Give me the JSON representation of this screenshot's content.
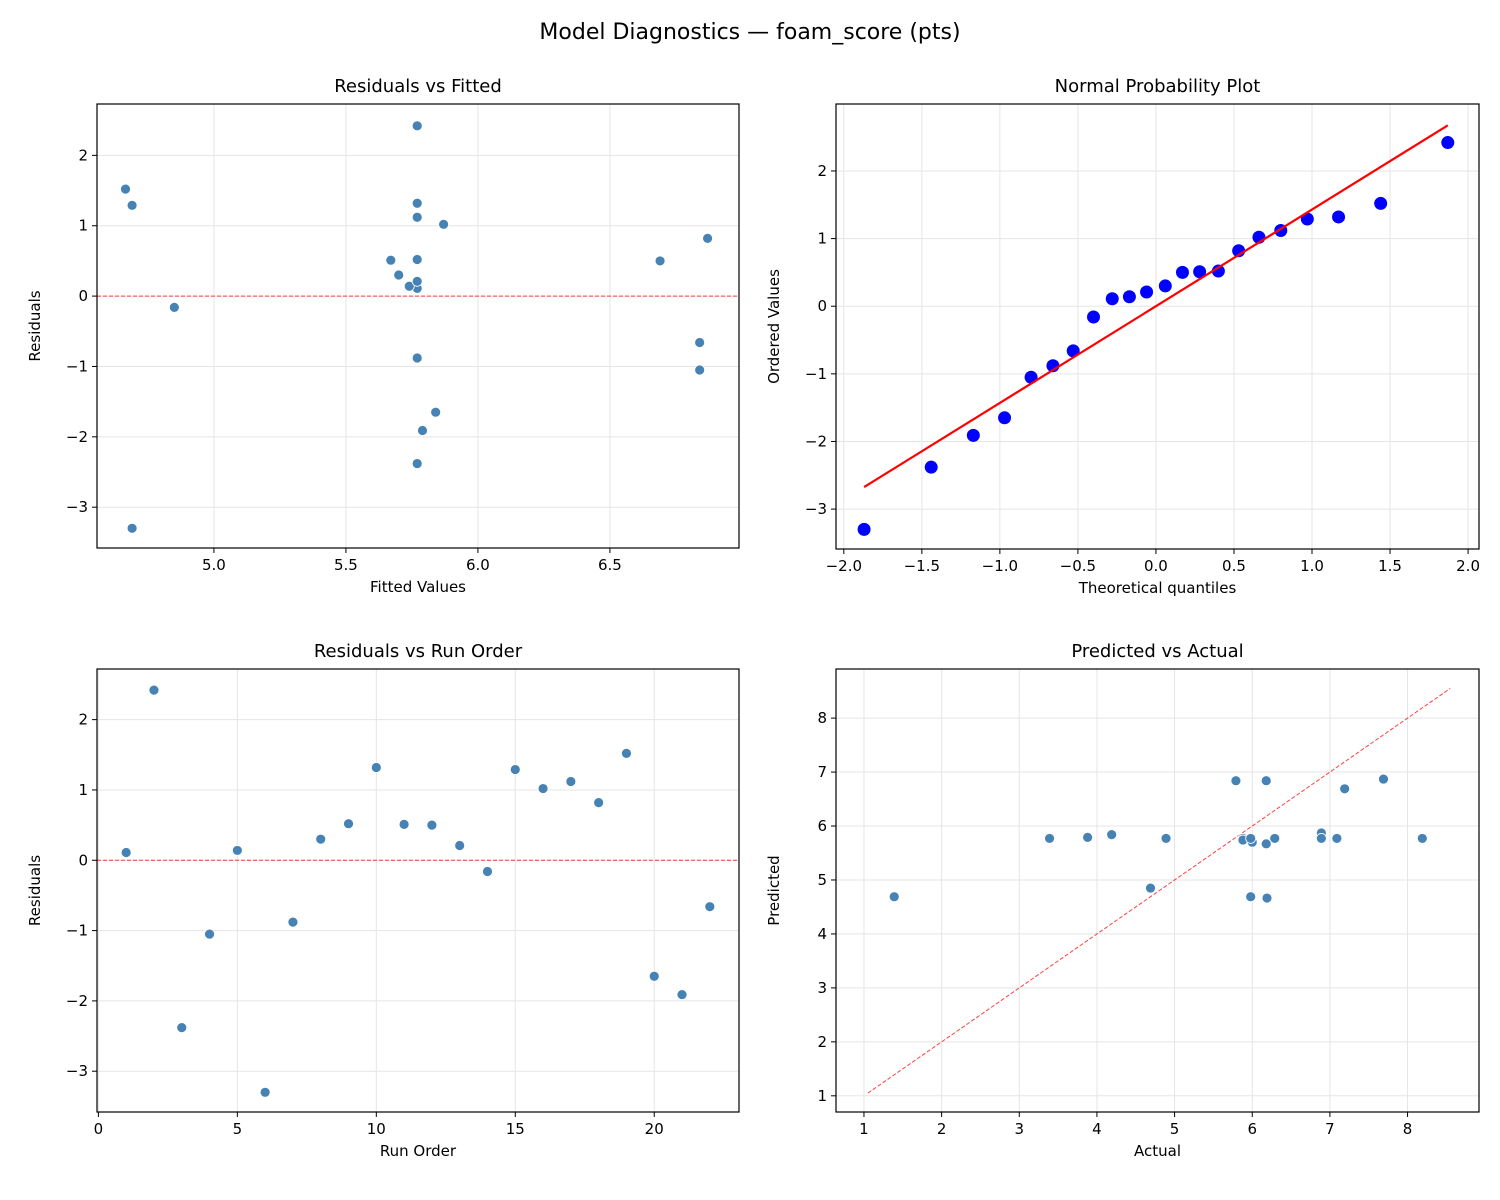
{
  "title": "Model Diagnostics — foam_score (pts)",
  "colors": {
    "points": "#4682b4",
    "reference": "#ff0000",
    "probplot_points": "#0000ff",
    "grid": "#e5e5e5"
  },
  "chart_data": [
    {
      "type": "scatter",
      "title": "Residuals vs Fitted",
      "xlabel": "Fitted Values",
      "ylabel": "Residuals",
      "xlim": [
        4.557,
        6.989
      ],
      "ylim": [
        -3.58,
        2.73
      ],
      "xticks": [
        5.0,
        5.5,
        6.0,
        6.5
      ],
      "xticklabels": [
        "5.0",
        "5.5",
        "6.0",
        "6.5"
      ],
      "yticks": [
        -3,
        -2,
        -1,
        0,
        1,
        2
      ],
      "yticklabels": [
        "−3",
        "−2",
        "−1",
        "0",
        "1",
        "2"
      ],
      "grid": true,
      "hline": 0,
      "x": [
        5.77,
        5.77,
        5.77,
        6.84,
        5.74,
        4.69,
        5.77,
        5.7,
        5.77,
        5.77,
        5.67,
        6.69,
        5.77,
        4.85,
        4.69,
        5.87,
        5.77,
        6.87,
        4.665,
        5.84,
        5.79,
        6.84
      ],
      "y": [
        0.11,
        2.42,
        -2.38,
        -1.05,
        0.14,
        -3.3,
        -0.88,
        0.3,
        0.52,
        1.32,
        0.51,
        0.5,
        0.21,
        -0.16,
        1.29,
        1.02,
        1.12,
        0.82,
        1.52,
        -1.65,
        -1.91,
        -0.66
      ]
    },
    {
      "type": "scatter",
      "title": "Normal Probability Plot",
      "xlabel": "Theoretical quantiles",
      "ylabel": "Ordered Values",
      "xlim": [
        -2.05,
        2.07
      ],
      "ylim": [
        -3.59,
        2.99
      ],
      "xticks": [
        -2.0,
        -1.5,
        -1.0,
        -0.5,
        0.0,
        0.5,
        1.0,
        1.5,
        2.0
      ],
      "xticklabels": [
        "−2.0",
        "−1.5",
        "−1.0",
        "−0.5",
        "0.0",
        "0.5",
        "1.0",
        "1.5",
        "2.0"
      ],
      "yticks": [
        -3,
        -2,
        -1,
        0,
        1,
        2
      ],
      "yticklabels": [
        "−3",
        "−2",
        "−1",
        "0",
        "1",
        "2"
      ],
      "grid": true,
      "fit_line": {
        "slope": 1.43,
        "intercept": 0.0
      },
      "x": [
        -1.87,
        -1.44,
        -1.17,
        -0.97,
        -0.8,
        -0.66,
        -0.53,
        -0.4,
        -0.28,
        -0.17,
        -0.06,
        0.06,
        0.17,
        0.28,
        0.4,
        0.53,
        0.66,
        0.8,
        0.97,
        1.17,
        1.44,
        1.87
      ],
      "y": [
        -3.3,
        -2.38,
        -1.91,
        -1.65,
        -1.05,
        -0.88,
        -0.66,
        -0.16,
        0.11,
        0.14,
        0.21,
        0.3,
        0.5,
        0.51,
        0.52,
        0.82,
        1.02,
        1.12,
        1.29,
        1.32,
        1.52,
        2.42
      ]
    },
    {
      "type": "scatter",
      "title": "Residuals vs Run Order",
      "xlabel": "Run Order",
      "ylabel": "Residuals",
      "xlim": [
        -0.05,
        23.05
      ],
      "ylim": [
        -3.58,
        2.72
      ],
      "xticks": [
        0,
        5,
        10,
        15,
        20
      ],
      "xticklabels": [
        "0",
        "5",
        "10",
        "15",
        "20"
      ],
      "yticks": [
        -3,
        -2,
        -1,
        0,
        1,
        2
      ],
      "yticklabels": [
        "−3",
        "−2",
        "−1",
        "0",
        "1",
        "2"
      ],
      "grid": true,
      "hline": 0,
      "x": [
        1,
        2,
        3,
        4,
        5,
        6,
        7,
        8,
        9,
        10,
        11,
        12,
        13,
        14,
        15,
        16,
        17,
        18,
        19,
        20,
        21,
        22
      ],
      "y": [
        0.11,
        2.42,
        -2.38,
        -1.05,
        0.14,
        -3.3,
        -0.88,
        0.3,
        0.52,
        1.32,
        0.51,
        0.5,
        0.21,
        -0.16,
        1.29,
        1.02,
        1.12,
        0.82,
        1.52,
        -1.65,
        -1.91,
        -0.66
      ]
    },
    {
      "type": "scatter",
      "title": "Predicted vs Actual",
      "xlabel": "Actual",
      "ylabel": "Predicted",
      "xlim": [
        0.64,
        8.92
      ],
      "ylim": [
        0.7,
        8.91
      ],
      "xticks": [
        1,
        2,
        3,
        4,
        5,
        6,
        7,
        8
      ],
      "xticklabels": [
        "1",
        "2",
        "3",
        "4",
        "5",
        "6",
        "7",
        "8"
      ],
      "yticks": [
        1,
        2,
        3,
        4,
        5,
        6,
        7,
        8
      ],
      "yticklabels": [
        "1",
        "2",
        "3",
        "4",
        "5",
        "6",
        "7",
        "8"
      ],
      "grid": true,
      "diagonal": [
        1.05,
        8.55
      ],
      "x": [
        5.88,
        8.19,
        3.39,
        5.79,
        5.88,
        1.39,
        4.89,
        6.0,
        6.29,
        7.09,
        6.18,
        7.19,
        5.98,
        4.69,
        5.98,
        6.89,
        6.89,
        7.69,
        6.19,
        4.19,
        3.88,
        6.18
      ],
      "y": [
        5.77,
        5.77,
        5.77,
        6.84,
        5.74,
        4.69,
        5.77,
        5.7,
        5.77,
        5.77,
        5.67,
        6.69,
        5.77,
        4.85,
        4.69,
        5.87,
        5.77,
        6.87,
        4.665,
        5.84,
        5.79,
        6.84
      ]
    }
  ]
}
